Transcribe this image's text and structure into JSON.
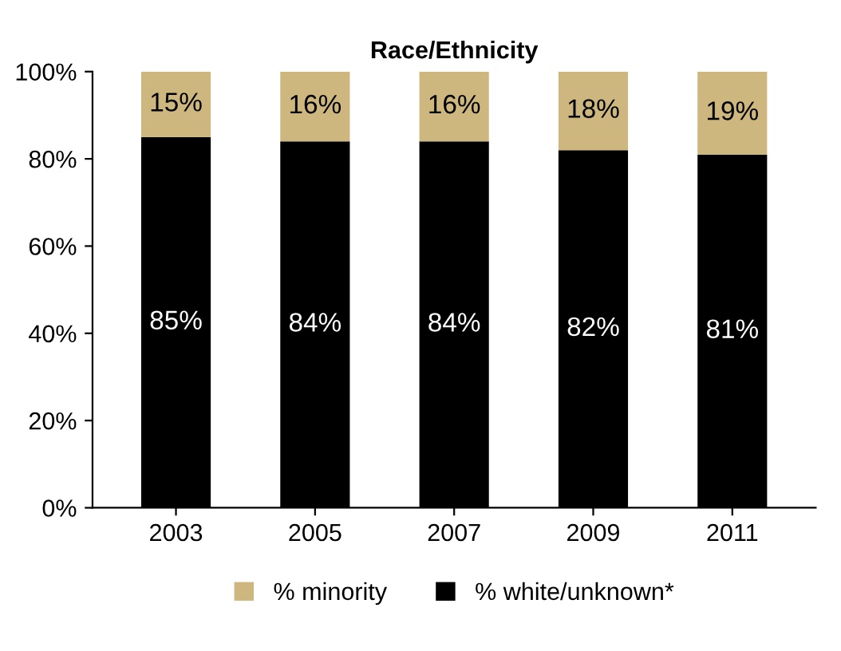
{
  "chart_data": {
    "type": "bar",
    "title": "Race/Ethnicity",
    "stacked": true,
    "categories": [
      "2003",
      "2005",
      "2007",
      "2009",
      "2011"
    ],
    "series": [
      {
        "name": "% white/unknown*",
        "color": "#000000",
        "values": [
          85,
          84,
          84,
          82,
          81
        ],
        "value_labels": [
          "85%",
          "84%",
          "84%",
          "82%",
          "81%"
        ]
      },
      {
        "name": "% minority",
        "color": "#cdb77f",
        "values": [
          15,
          16,
          16,
          18,
          19
        ],
        "value_labels": [
          "15%",
          "16%",
          "16%",
          "18%",
          "19%"
        ]
      }
    ],
    "ylim": [
      0,
      100
    ],
    "yticks": [
      {
        "value": 0,
        "label": "0%"
      },
      {
        "value": 20,
        "label": "20%"
      },
      {
        "value": 40,
        "label": "40%"
      },
      {
        "value": 60,
        "label": "60%"
      },
      {
        "value": 80,
        "label": "80%"
      },
      {
        "value": 100,
        "label": "100%"
      }
    ],
    "grid": false,
    "legend": "bottom"
  }
}
